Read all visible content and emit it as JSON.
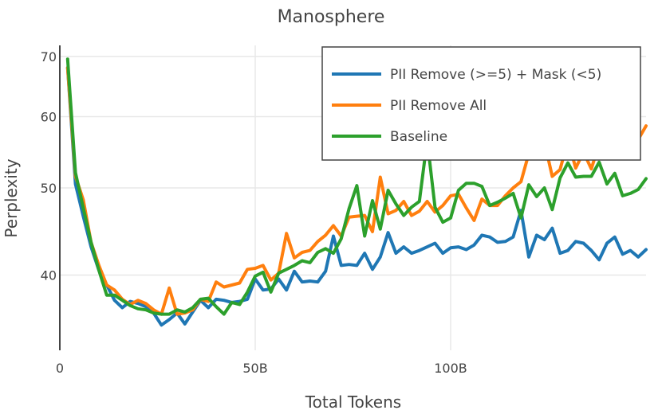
{
  "chart_data": {
    "type": "line",
    "title": "Manosphere",
    "xlabel": "Total Tokens",
    "ylabel": "Perplexity",
    "y_scale": "log",
    "xlim": [
      0,
      150000000000
    ],
    "ylim": [
      33,
      72
    ],
    "x_ticks": [
      {
        "value": 0,
        "label": "0"
      },
      {
        "value": 50000000000,
        "label": "50B"
      },
      {
        "value": 100000000000,
        "label": "100B"
      }
    ],
    "y_ticks": [
      {
        "value": 40,
        "label": "40"
      },
      {
        "value": 50,
        "label": "50"
      },
      {
        "value": 60,
        "label": "60"
      },
      {
        "value": 70,
        "label": "70"
      }
    ],
    "grid": true,
    "legend_position": "top-right",
    "series": [
      {
        "name": "PII Remove (>=5) + Mask (<5)",
        "color": "#1f77b4",
        "x": [
          2,
          4,
          6,
          8,
          10,
          12,
          14,
          16,
          18,
          20,
          22,
          24,
          26,
          28,
          30,
          32,
          34,
          36,
          38,
          40,
          42,
          44,
          46,
          48,
          50,
          52,
          54,
          56,
          58,
          60,
          62,
          64,
          66,
          68,
          70,
          72,
          74,
          76,
          78,
          80,
          82,
          84,
          86,
          88,
          90,
          92,
          94,
          96,
          98,
          100,
          102,
          104,
          106,
          108,
          110,
          112,
          114,
          116,
          118,
          120,
          122,
          124,
          126,
          128,
          130,
          132,
          134,
          136,
          138,
          140,
          142,
          144,
          146,
          148,
          150
        ],
        "y": [
          68,
          50.5,
          46.5,
          43,
          40.5,
          39,
          37.5,
          36.8,
          37.4,
          37.2,
          36.9,
          36.3,
          35.2,
          35.7,
          36.3,
          35.3,
          36.4,
          37.5,
          36.8,
          37.6,
          37.5,
          37.3,
          37.4,
          37.6,
          39.6,
          38.5,
          38.6,
          39.6,
          38.5,
          40.4,
          39.3,
          39.4,
          39.3,
          40.4,
          44.2,
          41,
          41.1,
          41,
          42.3,
          40.6,
          41.9,
          44.6,
          42.3,
          43,
          42.3,
          42.6,
          43,
          43.4,
          42.3,
          42.9,
          43,
          42.7,
          43.2,
          44.3,
          44.1,
          43.5,
          43.6,
          44.1,
          47.2,
          41.9,
          44.3,
          43.8,
          45.1,
          42.3,
          42.6,
          43.6,
          43.4,
          42.6,
          41.6,
          43.4,
          44.1,
          42.2,
          42.6,
          41.9,
          42.7
        ]
      },
      {
        "name": "PII Remove All",
        "color": "#ff7f0e",
        "x": [
          2,
          4,
          6,
          8,
          10,
          12,
          14,
          16,
          18,
          20,
          22,
          24,
          26,
          28,
          30,
          32,
          34,
          36,
          38,
          40,
          42,
          44,
          46,
          48,
          50,
          52,
          54,
          56,
          58,
          60,
          62,
          64,
          66,
          68,
          70,
          72,
          74,
          76,
          78,
          80,
          82,
          84,
          86,
          88,
          90,
          92,
          94,
          96,
          98,
          100,
          102,
          104,
          106,
          108,
          110,
          112,
          114,
          116,
          118,
          120,
          122,
          124,
          126,
          128,
          130,
          132,
          134,
          136,
          138,
          140,
          142,
          144,
          146,
          148,
          150
        ],
        "y": [
          68,
          51.5,
          48.5,
          43.5,
          41,
          39,
          38.5,
          37.6,
          37.1,
          37.5,
          37.2,
          36.6,
          36.2,
          38.7,
          36.2,
          36.3,
          36.6,
          37.6,
          37.4,
          39.3,
          38.8,
          39,
          39.2,
          40.6,
          40.7,
          41,
          39.5,
          40.2,
          44.5,
          41.8,
          42.4,
          42.6,
          43.6,
          44.3,
          45.4,
          44.2,
          46.4,
          46.5,
          46.6,
          44.7,
          51.4,
          46.8,
          47.2,
          48.3,
          46.6,
          47.1,
          48.3,
          47,
          47.8,
          49,
          49.2,
          47.5,
          46,
          48.6,
          47.8,
          47.8,
          49,
          50,
          50.8,
          54.6,
          58,
          56.2,
          51.5,
          52.4,
          56.5,
          52.6,
          54.8,
          52.5,
          56,
          56.9,
          57,
          55.8,
          58.8,
          56.6,
          58.6
        ]
      },
      {
        "name": "Baseline",
        "color": "#2ca02c",
        "x": [
          2,
          4,
          6,
          8,
          10,
          12,
          14,
          16,
          18,
          20,
          22,
          24,
          26,
          28,
          30,
          32,
          34,
          36,
          38,
          40,
          42,
          44,
          46,
          48,
          50,
          52,
          54,
          56,
          58,
          60,
          62,
          64,
          66,
          68,
          70,
          72,
          74,
          76,
          78,
          80,
          82,
          84,
          86,
          88,
          90,
          92,
          94,
          96,
          98,
          100,
          102,
          104,
          106,
          108,
          110,
          112,
          114,
          116,
          118,
          120,
          122,
          124,
          126,
          128,
          130,
          132,
          134,
          136,
          138,
          140,
          142,
          144,
          146,
          148,
          150
        ],
        "y": [
          69.5,
          52,
          47.5,
          43.5,
          40.5,
          38,
          38,
          37.5,
          37,
          36.7,
          36.6,
          36.3,
          36.2,
          36.2,
          36.6,
          36.4,
          36.8,
          37.6,
          37.7,
          36.9,
          36.2,
          37.3,
          37.1,
          38.3,
          39.9,
          40.3,
          38.3,
          40.2,
          40.6,
          41,
          41.5,
          41.3,
          42.4,
          42.8,
          42.3,
          43.9,
          47.4,
          50.3,
          44.2,
          48.4,
          45,
          49.7,
          48,
          46.6,
          47.6,
          48.3,
          56.5,
          47.6,
          45.8,
          46.3,
          49.7,
          50.6,
          50.6,
          50.2,
          47.8,
          48.2,
          48.7,
          49.3,
          46.3,
          50.4,
          48.9,
          50,
          47.3,
          51.3,
          53.3,
          51.4,
          51.5,
          51.5,
          53.4,
          50.5,
          51.9,
          49,
          49.3,
          49.8,
          51.2
        ]
      }
    ]
  }
}
